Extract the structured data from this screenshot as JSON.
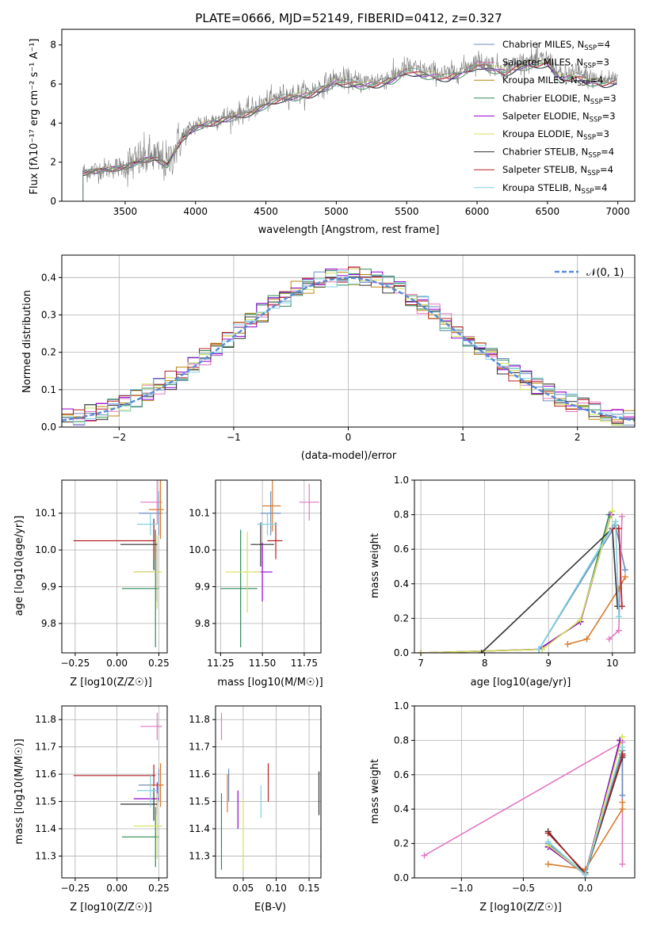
{
  "chart_data": [
    {
      "id": "spectrum",
      "type": "line",
      "title": "PLATE=0666, MJD=52149, FIBERID=0412, z=0.327",
      "xlabel": "wavelength [Angstrom, rest frame]",
      "ylabel": "Flux [fλ10⁻¹⁷ erg cm⁻² s⁻¹ A⁻¹]",
      "xlim": [
        3050,
        7120
      ],
      "ylim": [
        0,
        8.8
      ],
      "xticks": [
        3500,
        4000,
        4500,
        5000,
        5500,
        6000,
        6500,
        7000
      ],
      "yticks": [
        0,
        2,
        4,
        6,
        8
      ],
      "data_envelope": {
        "x": [
          3200,
          3300,
          3400,
          3500,
          3600,
          3700,
          3800,
          3900,
          4000,
          4100,
          4200,
          4300,
          4400,
          4500,
          4600,
          4700,
          4800,
          4900,
          5000,
          5100,
          5200,
          5300,
          5400,
          5500,
          5600,
          5700,
          5800,
          5900,
          6000,
          6100,
          6200,
          6300,
          6400,
          6500,
          6600,
          6700,
          6800,
          6900,
          7000
        ],
        "y": [
          1.5,
          1.6,
          1.7,
          1.8,
          2.1,
          2.3,
          1.9,
          3.3,
          3.9,
          4.1,
          4.3,
          4.5,
          4.7,
          5.1,
          5.4,
          5.5,
          5.6,
          5.9,
          6.3,
          6.2,
          6.1,
          6.2,
          6.4,
          6.9,
          6.7,
          6.6,
          6.5,
          6.8,
          7.2,
          7.0,
          6.8,
          7.1,
          7.2,
          7.3,
          6.4,
          6.6,
          6.3,
          6.2,
          6.3
        ]
      },
      "series": [
        {
          "name": "Chabrier MILES, N_SSP=4",
          "color": "#6c8ebf"
        },
        {
          "name": "Salpeter MILES, N_SSP=3",
          "color": "#e377c2"
        },
        {
          "name": "Kroupa MILES, N_SSP=4",
          "color": "#b8860b"
        },
        {
          "name": "Chabrier ELODIE, N_SSP=3",
          "color": "#2e8b57"
        },
        {
          "name": "Salpeter ELODIE, N_SSP=3",
          "color": "#9400d3"
        },
        {
          "name": "Kroupa ELODIE, N_SSP=3",
          "color": "#d4e157"
        },
        {
          "name": "Chabrier STELIB, N_SSP=4",
          "color": "#333333"
        },
        {
          "name": "Salpeter STELIB, N_SSP=4",
          "color": "#b22222"
        },
        {
          "name": "Kroupa STELIB, N_SSP=4",
          "color": "#7fd3e0"
        }
      ],
      "legend_labels": [
        {
          "base": "Chabrier MILES, N",
          "sub": "SSP",
          "tail": "=4"
        },
        {
          "base": "Salpeter MILES, N",
          "sub": "SSP",
          "tail": "=3"
        },
        {
          "base": "Kroupa MILES, N",
          "sub": "SSP",
          "tail": "=4"
        },
        {
          "base": "Chabrier ELODIE, N",
          "sub": "SSP",
          "tail": "=3"
        },
        {
          "base": "Salpeter ELODIE, N",
          "sub": "SSP",
          "tail": "=3"
        },
        {
          "base": "Kroupa ELODIE, N",
          "sub": "SSP",
          "tail": "=3"
        },
        {
          "base": "Chabrier STELIB, N",
          "sub": "SSP",
          "tail": "=4"
        },
        {
          "base": "Salpeter STELIB, N",
          "sub": "SSP",
          "tail": "=4"
        },
        {
          "base": "Kroupa STELIB, N",
          "sub": "SSP",
          "tail": "=4"
        }
      ],
      "legend": "top-right",
      "grid": false
    },
    {
      "id": "residuals",
      "type": "histogram",
      "xlabel": "(data-model)/error",
      "ylabel": "Normed distribution",
      "xlim": [
        -2.5,
        2.5
      ],
      "ylim": [
        0,
        0.46
      ],
      "xticks": [
        -2,
        -1,
        0,
        1,
        2
      ],
      "yticks": [
        0,
        0.1,
        0.2,
        0.3,
        0.4
      ],
      "reference_curve": "𝒩(0, 1)",
      "reference_color": "#5b8bd6",
      "bin_width": 0.1,
      "legend": "top-right",
      "grid": true
    },
    {
      "id": "age-vs-Z",
      "type": "errorbar",
      "xlabel": "Z [log10(Z/Z☉)]",
      "ylabel": "age [log10(age/yr)]",
      "xlim": [
        -0.33,
        0.3
      ],
      "ylim": [
        9.72,
        10.19
      ],
      "xticks": [
        -0.25,
        0.0,
        0.25
      ],
      "yticks": [
        9.8,
        9.9,
        10.0,
        10.1
      ],
      "points": [
        {
          "x": 0.25,
          "y": 10.1,
          "xerr": [
            0.12,
            0.02
          ],
          "yerr": 0.06,
          "color": "#6c8ebf"
        },
        {
          "x": 0.24,
          "y": 10.13,
          "xerr": [
            0.1,
            0.03
          ],
          "yerr": 0.06,
          "color": "#e377c2"
        },
        {
          "x": 0.26,
          "y": 10.11,
          "xerr": [
            0.07,
            0.02
          ],
          "yerr": 0.08,
          "color": "#d97a2b"
        },
        {
          "x": 0.23,
          "y": 9.895,
          "xerr": [
            0.2,
            0.02
          ],
          "yerr": 0.16,
          "color": "#2e8b57"
        },
        {
          "x": 0.24,
          "y": 9.94,
          "xerr": [
            0.14,
            0.01
          ],
          "yerr": 0.08,
          "color": "#9400d3"
        },
        {
          "x": 0.24,
          "y": 9.94,
          "xerr": [
            0.14,
            0.03
          ],
          "yerr": 0.1,
          "color": "#d4e157"
        },
        {
          "x": 0.22,
          "y": 10.015,
          "xerr": [
            0.2,
            0.02
          ],
          "yerr": 0.07,
          "color": "#333333"
        },
        {
          "x": 0.22,
          "y": 10.025,
          "xerr": [
            0.48,
            0.01
          ],
          "yerr": 0.05,
          "color": "#b22222"
        },
        {
          "x": 0.2,
          "y": 10.07,
          "xerr": [
            0.08,
            0.04
          ],
          "yerr": 0.03,
          "color": "#7fd3e0"
        }
      ],
      "grid": true
    },
    {
      "id": "age-vs-mass",
      "type": "errorbar",
      "xlabel": "mass [log10(M/M☉)]",
      "ylabel": "",
      "xlim": [
        11.22,
        11.85
      ],
      "ylim": [
        9.72,
        10.19
      ],
      "xticks": [
        11.25,
        11.5,
        11.75
      ],
      "yticks": [
        9.8,
        9.9,
        10.0,
        10.1
      ],
      "points": [
        {
          "x": 11.55,
          "y": 10.1,
          "xerr": [
            0.06,
            0.06
          ],
          "yerr": 0.06,
          "color": "#6c8ebf"
        },
        {
          "x": 11.78,
          "y": 10.13,
          "xerr": [
            0.06,
            0.06
          ],
          "yerr": 0.05,
          "color": "#e377c2"
        },
        {
          "x": 11.56,
          "y": 10.12,
          "xerr": [
            0.06,
            0.05
          ],
          "yerr": 0.07,
          "color": "#d97a2b"
        },
        {
          "x": 11.37,
          "y": 9.895,
          "xerr": [
            0.12,
            0.1
          ],
          "yerr": 0.16,
          "color": "#2e8b57"
        },
        {
          "x": 11.5,
          "y": 9.94,
          "xerr": [
            0.05,
            0.06
          ],
          "yerr": 0.08,
          "color": "#9400d3"
        },
        {
          "x": 11.41,
          "y": 9.94,
          "xerr": [
            0.13,
            0.08
          ],
          "yerr": 0.11,
          "color": "#d4e157"
        },
        {
          "x": 11.49,
          "y": 10.015,
          "xerr": [
            0.06,
            0.08
          ],
          "yerr": 0.06,
          "color": "#333333"
        },
        {
          "x": 11.58,
          "y": 10.025,
          "xerr": [
            0.05,
            0.04
          ],
          "yerr": 0.05,
          "color": "#b22222"
        },
        {
          "x": 11.53,
          "y": 10.07,
          "xerr": [
            0.06,
            0.06
          ],
          "yerr": 0.03,
          "color": "#7fd3e0"
        }
      ],
      "grid": true
    },
    {
      "id": "massweight-vs-age",
      "type": "line",
      "xlabel": "age [log10(age/yr)]",
      "ylabel": "mass weight",
      "xlim": [
        6.9,
        10.35
      ],
      "ylim": [
        0,
        1
      ],
      "xticks": [
        7,
        8,
        9,
        10
      ],
      "yticks": [
        0.0,
        0.2,
        0.4,
        0.6,
        0.8,
        1.0
      ],
      "series": [
        {
          "color": "#6c8ebf",
          "x": [
            8.85,
            10.05,
            10.2
          ],
          "y": [
            0.02,
            0.74,
            0.48
          ]
        },
        {
          "color": "#e377c2",
          "x": [
            9.95,
            10.1,
            10.15
          ],
          "y": [
            0.08,
            0.13,
            0.79
          ]
        },
        {
          "color": "#d97a2b",
          "x": [
            9.3,
            9.6,
            10.1,
            10.2
          ],
          "y": [
            0.05,
            0.08,
            0.37,
            0.44
          ]
        },
        {
          "color": "#2e8b57",
          "x": [
            7.0,
            8.85,
            9.5,
            9.95
          ],
          "y": [
            0.0,
            0.02,
            0.18,
            0.8
          ]
        },
        {
          "color": "#9400d3",
          "x": [
            7.0,
            8.85,
            9.5,
            9.98
          ],
          "y": [
            0.0,
            0.02,
            0.18,
            0.8
          ]
        },
        {
          "color": "#d4e157",
          "x": [
            7.0,
            8.9,
            9.5,
            10.0
          ],
          "y": [
            0.0,
            0.02,
            0.19,
            0.82
          ]
        },
        {
          "color": "#333333",
          "x": [
            7.95,
            10.0,
            10.08
          ],
          "y": [
            0.0,
            0.72,
            0.27
          ]
        },
        {
          "color": "#b22222",
          "x": [
            10.0,
            10.1,
            10.15
          ],
          "y": [
            0.72,
            0.72,
            0.27
          ]
        },
        {
          "color": "#7fd3e0",
          "x": [
            8.85,
            10.05,
            10.1
          ],
          "y": [
            0.02,
            0.76,
            0.21
          ]
        }
      ],
      "grid": true
    },
    {
      "id": "mass-vs-Z",
      "type": "errorbar",
      "xlabel": "Z [log10(Z/Z☉)]",
      "ylabel": "mass [log10(M/M☉)]",
      "xlim": [
        -0.33,
        0.3
      ],
      "ylim": [
        11.22,
        11.85
      ],
      "xticks": [
        -0.25,
        0.0,
        0.25
      ],
      "yticks": [
        11.3,
        11.4,
        11.5,
        11.6,
        11.7,
        11.8
      ],
      "points": [
        {
          "x": 0.25,
          "y": 11.56,
          "xerr": [
            0.12,
            0.02
          ],
          "yerr": 0.06,
          "color": "#6c8ebf"
        },
        {
          "x": 0.24,
          "y": 11.775,
          "xerr": [
            0.1,
            0.03
          ],
          "yerr": 0.05,
          "color": "#e377c2"
        },
        {
          "x": 0.26,
          "y": 11.56,
          "xerr": [
            0.07,
            0.02
          ],
          "yerr": 0.08,
          "color": "#d97a2b"
        },
        {
          "x": 0.23,
          "y": 11.37,
          "xerr": [
            0.2,
            0.02
          ],
          "yerr": 0.11,
          "color": "#2e8b57"
        },
        {
          "x": 0.24,
          "y": 11.51,
          "xerr": [
            0.14,
            0.01
          ],
          "yerr": 0.06,
          "color": "#9400d3"
        },
        {
          "x": 0.24,
          "y": 11.41,
          "xerr": [
            0.14,
            0.03
          ],
          "yerr": 0.12,
          "color": "#d4e157"
        },
        {
          "x": 0.22,
          "y": 11.49,
          "xerr": [
            0.2,
            0.02
          ],
          "yerr": 0.06,
          "color": "#333333"
        },
        {
          "x": 0.22,
          "y": 11.595,
          "xerr": [
            0.48,
            0.01
          ],
          "yerr": 0.04,
          "color": "#b22222"
        },
        {
          "x": 0.2,
          "y": 11.54,
          "xerr": [
            0.08,
            0.04
          ],
          "yerr": 0.06,
          "color": "#7fd3e0"
        }
      ],
      "grid": true
    },
    {
      "id": "mass-vs-EBV",
      "type": "errorbar",
      "xlabel": "E(B-V)",
      "ylabel": "",
      "xlim": [
        0.008,
        0.168
      ],
      "ylim": [
        11.22,
        11.85
      ],
      "xticks": [
        0.05,
        0.1,
        0.15
      ],
      "yticks": [
        11.3,
        11.4,
        11.5,
        11.6,
        11.7,
        11.8
      ],
      "points": [
        {
          "x": 0.028,
          "y": 11.56,
          "yerr": 0.06,
          "color": "#6c8ebf"
        },
        {
          "x": 0.017,
          "y": 11.775,
          "yerr": 0.05,
          "color": "#e377c2"
        },
        {
          "x": 0.026,
          "y": 11.53,
          "yerr": 0.07,
          "color": "#d97a2b"
        },
        {
          "x": 0.017,
          "y": 11.39,
          "yerr": 0.14,
          "color": "#2e8b57"
        },
        {
          "x": 0.042,
          "y": 11.47,
          "yerr": 0.07,
          "color": "#9400d3"
        },
        {
          "x": 0.05,
          "y": 11.38,
          "yerr": 0.13,
          "color": "#d4e157"
        },
        {
          "x": 0.165,
          "y": 11.53,
          "yerr": 0.08,
          "color": "#333333"
        },
        {
          "x": 0.088,
          "y": 11.57,
          "yerr": 0.07,
          "color": "#b22222"
        },
        {
          "x": 0.077,
          "y": 11.5,
          "yerr": 0.06,
          "color": "#7fd3e0"
        }
      ],
      "grid": true
    },
    {
      "id": "massweight-vs-Z",
      "type": "line",
      "xlabel": "Z [log10(Z/Z☉)]",
      "ylabel": "mass weight",
      "xlim": [
        -1.38,
        0.4
      ],
      "ylim": [
        0,
        1
      ],
      "xticks": [
        -1.0,
        -0.5,
        0.0
      ],
      "yticks": [
        0.0,
        0.2,
        0.4,
        0.6,
        0.8,
        1.0
      ],
      "series": [
        {
          "color": "#e377c2",
          "x": [
            -1.3,
            0.3,
            0.3
          ],
          "y": [
            0.13,
            0.79,
            0.08
          ]
        },
        {
          "color": "#d97a2b",
          "x": [
            -0.3,
            0.0,
            0.3,
            0.3
          ],
          "y": [
            0.08,
            0.05,
            0.4,
            0.44
          ]
        },
        {
          "color": "#6c8ebf",
          "x": [
            -0.3,
            0.0,
            0.3,
            0.3
          ],
          "y": [
            0.2,
            0.02,
            0.74,
            0.48
          ]
        },
        {
          "color": "#2e8b57",
          "x": [
            -0.3,
            0.0,
            0.28
          ],
          "y": [
            0.18,
            0.02,
            0.8
          ]
        },
        {
          "color": "#9400d3",
          "x": [
            -0.3,
            0.0,
            0.28
          ],
          "y": [
            0.18,
            0.02,
            0.8
          ]
        },
        {
          "color": "#d4e157",
          "x": [
            -0.3,
            0.0,
            0.3
          ],
          "y": [
            0.19,
            0.02,
            0.82
          ]
        },
        {
          "color": "#333333",
          "x": [
            -0.3,
            0.0,
            0.3,
            0.3
          ],
          "y": [
            0.27,
            0.02,
            0.7,
            0.72
          ]
        },
        {
          "color": "#b22222",
          "x": [
            -0.3,
            0.0,
            0.3,
            0.3
          ],
          "y": [
            0.26,
            0.03,
            0.71,
            0.72
          ]
        },
        {
          "color": "#7fd3e0",
          "x": [
            -0.3,
            0.0,
            0.3
          ],
          "y": [
            0.21,
            0.02,
            0.76
          ]
        }
      ],
      "grid": true
    }
  ]
}
